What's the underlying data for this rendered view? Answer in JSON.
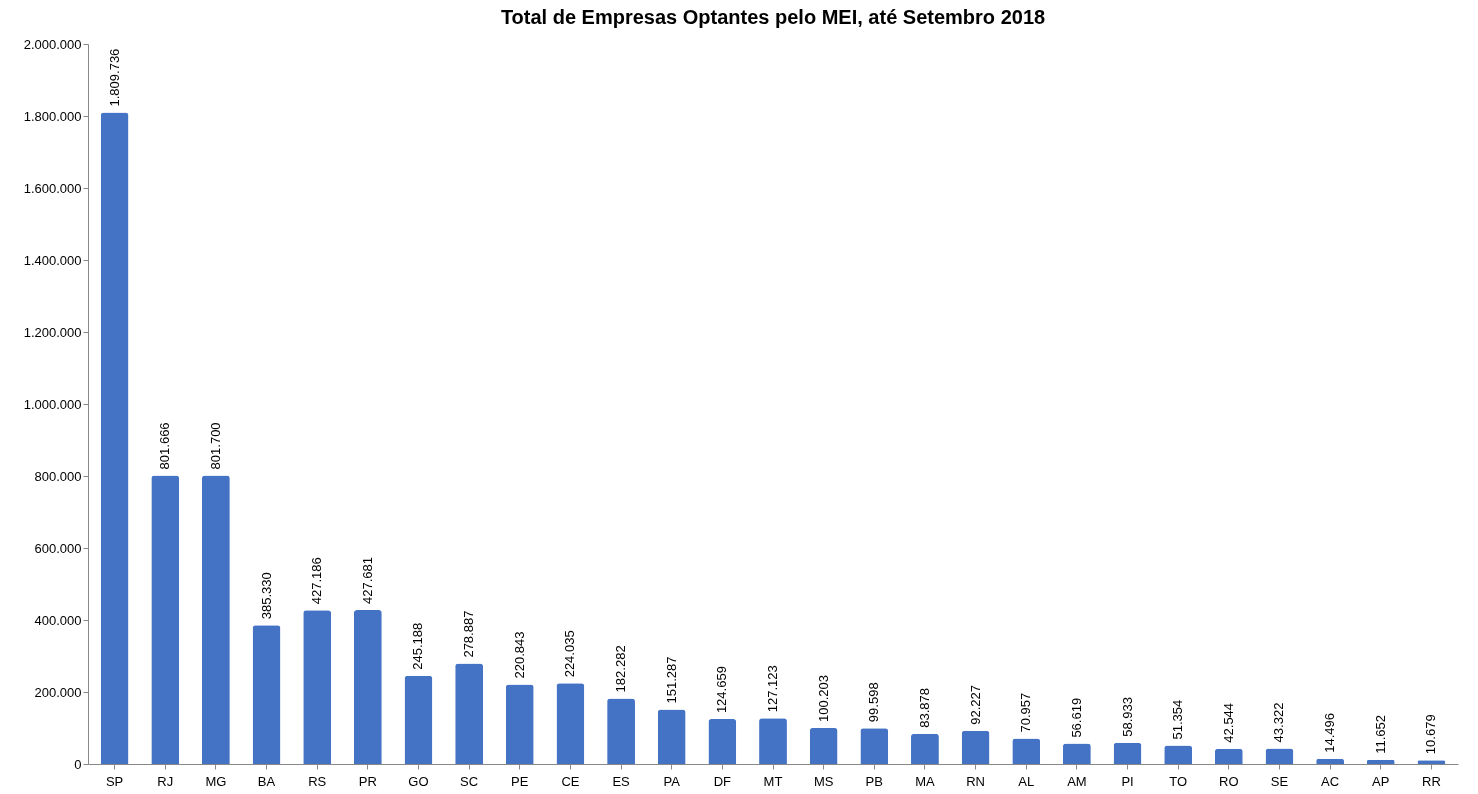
{
  "chart_data": {
    "type": "bar",
    "title": "Total de Empresas Optantes pelo MEI, até Setembro 2018",
    "categories": [
      "SP",
      "RJ",
      "MG",
      "BA",
      "RS",
      "PR",
      "GO",
      "SC",
      "PE",
      "CE",
      "ES",
      "PA",
      "DF",
      "MT",
      "MS",
      "PB",
      "MA",
      "RN",
      "AL",
      "AM",
      "PI",
      "TO",
      "RO",
      "SE",
      "AC",
      "AP",
      "RR"
    ],
    "values": [
      1809736,
      801666,
      801700,
      385330,
      427186,
      427681,
      245188,
      278887,
      220843,
      224035,
      182282,
      151287,
      124659,
      127123,
      100203,
      99598,
      83878,
      92227,
      70957,
      56619,
      58933,
      51354,
      42544,
      43322,
      14496,
      11652,
      10679
    ],
    "value_labels": [
      "1.809.736",
      "801.666",
      "801.700",
      "385.330",
      "427.186",
      "427.681",
      "245.188",
      "278.887",
      "220.843",
      "224.035",
      "182.282",
      "151.287",
      "124.659",
      "127.123",
      "100.203",
      "99.598",
      "83.878",
      "92.227",
      "70.957",
      "56.619",
      "58.933",
      "51.354",
      "42.544",
      "43.322",
      "14.496",
      "11.652",
      "10.679"
    ],
    "color": "#4472c4",
    "ylim": [
      0,
      2000000
    ],
    "yticks": [
      {
        "value": 0,
        "label": "0"
      },
      {
        "value": 200000,
        "label": "200.000"
      },
      {
        "value": 400000,
        "label": "400.000"
      },
      {
        "value": 600000,
        "label": "600.000"
      },
      {
        "value": 800000,
        "label": "800.000"
      },
      {
        "value": 1000000,
        "label": "1.000.000"
      },
      {
        "value": 1200000,
        "label": "1.200.000"
      },
      {
        "value": 1400000,
        "label": "1.400.000"
      },
      {
        "value": 1600000,
        "label": "1.600.000"
      },
      {
        "value": 1800000,
        "label": "1.800.000"
      },
      {
        "value": 2000000,
        "label": "2.000.000"
      }
    ],
    "grid": false
  }
}
